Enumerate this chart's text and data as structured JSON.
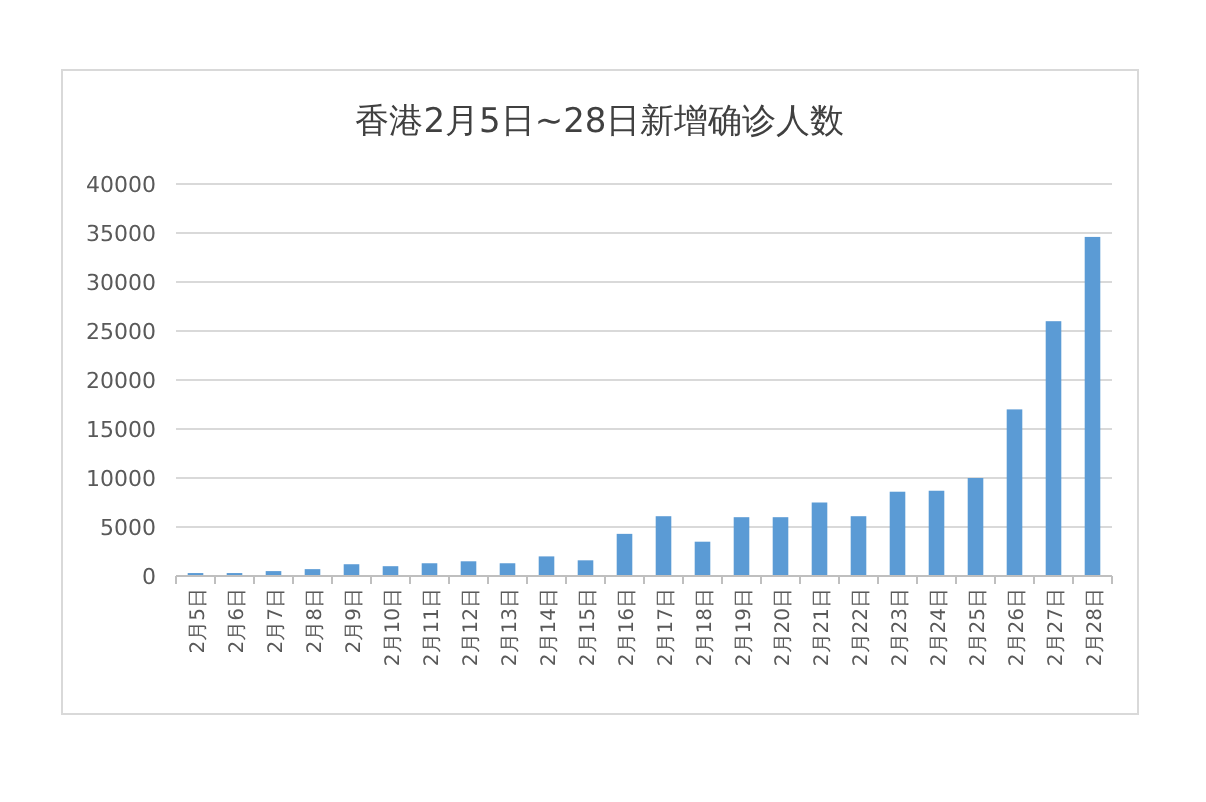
{
  "chart_data": {
    "type": "bar",
    "title": "香港2月5日~28日新增确诊人数",
    "categories": [
      "2月5日",
      "2月6日",
      "2月7日",
      "2月8日",
      "2月9日",
      "2月10日",
      "2月11日",
      "2月12日",
      "2月13日",
      "2月14日",
      "2月15日",
      "2月16日",
      "2月17日",
      "2月18日",
      "2月19日",
      "2月20日",
      "2月21日",
      "2月22日",
      "2月23日",
      "2月24日",
      "2月25日",
      "2月26日",
      "2月27日",
      "2月28日"
    ],
    "values": [
      300,
      300,
      500,
      700,
      1200,
      1000,
      1300,
      1500,
      1300,
      2000,
      1600,
      4300,
      6100,
      3500,
      6000,
      6000,
      7500,
      6100,
      8600,
      8700,
      10000,
      17000,
      26000,
      34600
    ],
    "color": "#5b9bd5",
    "ylim": [
      0,
      40000
    ],
    "yticks": [
      0,
      5000,
      10000,
      15000,
      20000,
      25000,
      30000,
      35000,
      40000
    ],
    "grid": "y"
  }
}
